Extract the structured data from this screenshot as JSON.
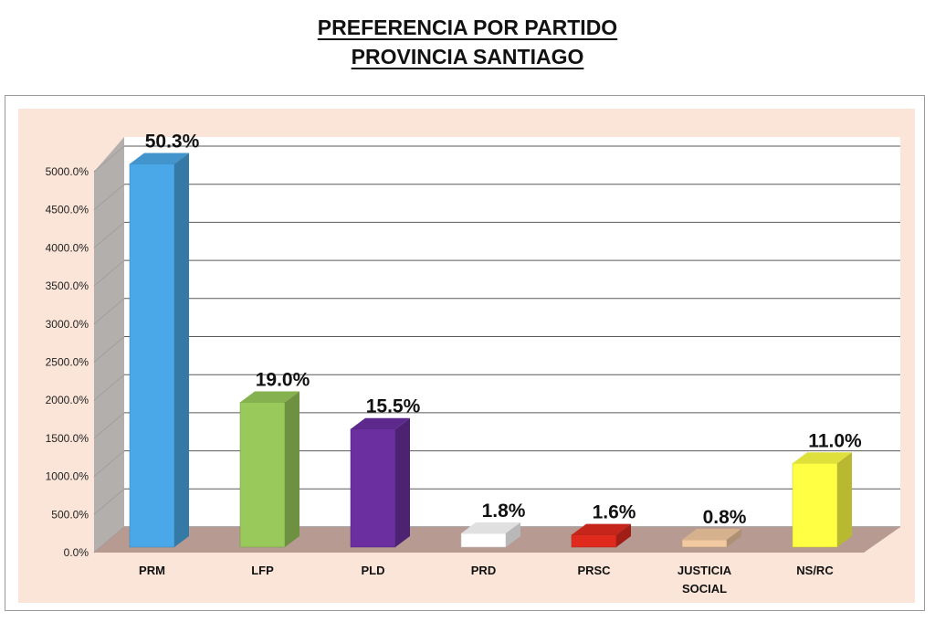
{
  "title_lines": [
    "PREFERENCIA POR PARTIDO",
    "PROVINCIA SANTIAGO"
  ],
  "chart_data": {
    "type": "bar",
    "title": "PREFERENCIA POR PARTIDO PROVINCIA SANTIAGO",
    "categories": [
      "PRM",
      "LFP",
      "PLD",
      "PRD",
      "PRSC",
      "JUSTICIA SOCIAL",
      "NS/RC"
    ],
    "category_label_lines": [
      [
        "PRM"
      ],
      [
        "LFP"
      ],
      [
        "PLD"
      ],
      [
        "PRD"
      ],
      [
        "PRSC"
      ],
      [
        "JUSTICIA",
        "SOCIAL"
      ],
      [
        "NS/RC"
      ]
    ],
    "values": [
      50.3,
      19.0,
      15.5,
      1.8,
      1.6,
      0.8,
      11.0
    ],
    "value_labels": [
      "50.3%",
      "19.0%",
      "15.5%",
      "1.8%",
      "1.6%",
      "0.8%",
      "11.0%"
    ],
    "axis_values": [
      5030,
      1900,
      1550,
      180,
      160,
      80,
      1100
    ],
    "y_ticks": [
      "0.0%",
      "500.0%",
      "1000.0%",
      "1500.0%",
      "2000.0%",
      "2500.0%",
      "3000.0%",
      "3500.0%",
      "4000.0%",
      "4500.0%",
      "5000.0%"
    ],
    "ylim": [
      0,
      5000
    ],
    "xlabel": "",
    "ylabel": "",
    "grid": true,
    "legend": "none",
    "bar_colors": [
      "#4aa8e8",
      "#98c95a",
      "#6b2fa0",
      "#ffffff",
      "#e02a1e",
      "#f2c9a0",
      "#ffff44"
    ],
    "plot_background": "#fae5d8",
    "floor_color": "#b79a92",
    "wall_color": "#a6a6a6"
  }
}
